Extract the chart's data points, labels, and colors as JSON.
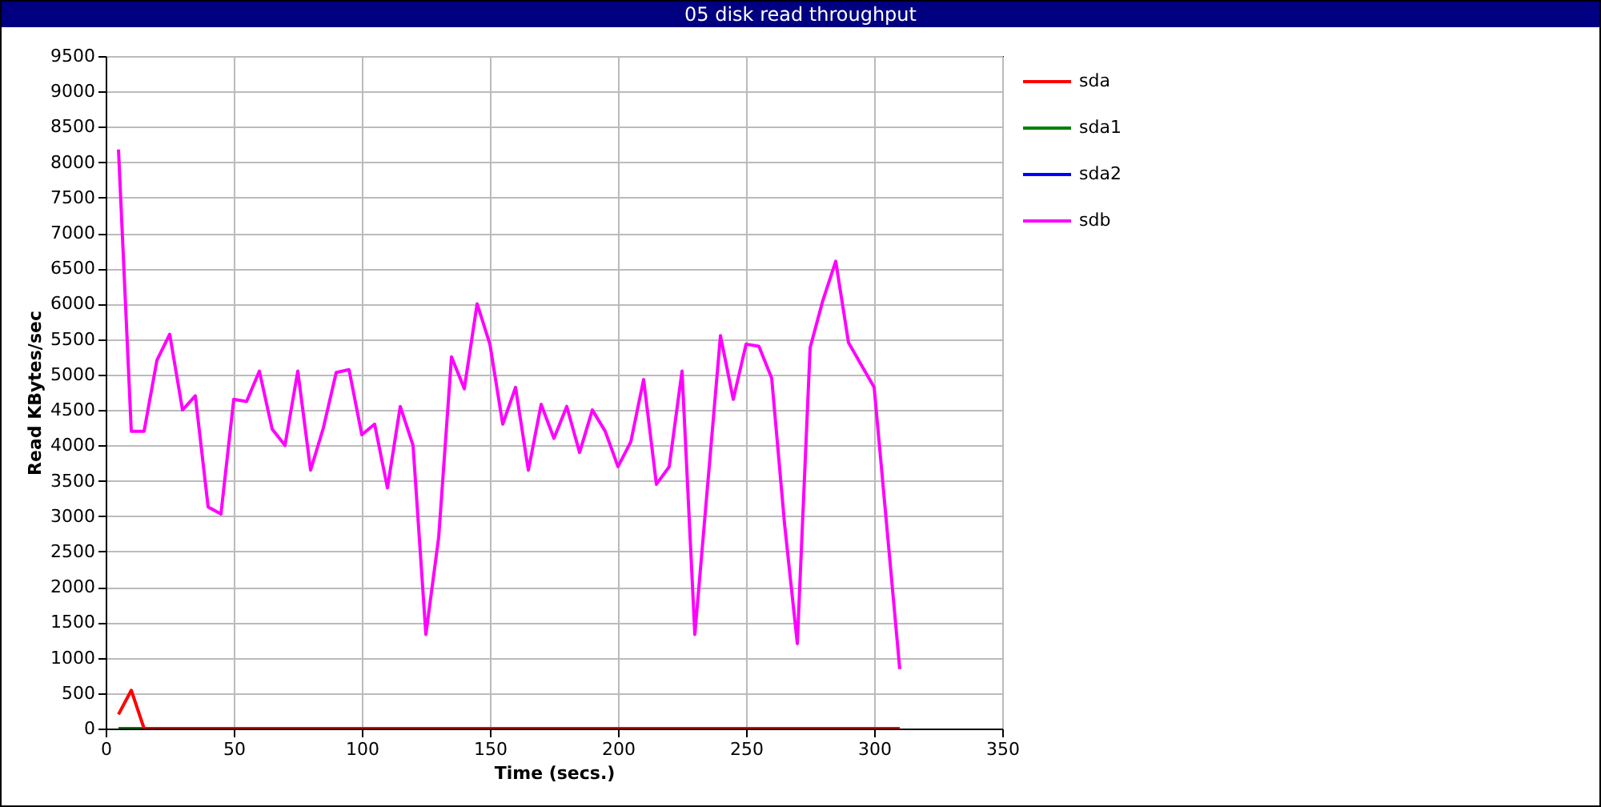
{
  "chart_data": {
    "type": "line",
    "title": "05 disk read throughput",
    "xlabel": "Time (secs.)",
    "ylabel": "Read KBytes/sec",
    "xlim": [
      0,
      350
    ],
    "xticks": [
      0,
      50,
      100,
      150,
      200,
      250,
      300,
      350
    ],
    "ylim": [
      0,
      9500
    ],
    "yticks": [
      0,
      500,
      1000,
      1500,
      2000,
      2500,
      3000,
      3500,
      4000,
      4500,
      5000,
      5500,
      6000,
      6500,
      7000,
      7500,
      8000,
      8500,
      9000,
      9500
    ],
    "grid": true,
    "legend": "top right",
    "line_style": "solid",
    "series": [
      {
        "name": "sda",
        "color": "#ff0000",
        "x": [
          5,
          10,
          15,
          310
        ],
        "values": [
          200,
          540,
          0,
          0
        ]
      },
      {
        "name": "sda1",
        "color": "#008000",
        "x": [
          5,
          10,
          15
        ],
        "values": [
          0,
          0,
          0
        ]
      },
      {
        "name": "sda2",
        "color": "#0000ff"
      },
      {
        "name": "sdb",
        "color": "#ff00ff",
        "x": [
          5,
          10,
          15,
          20,
          25,
          30,
          35,
          40,
          45,
          50,
          55,
          60,
          65,
          70,
          75,
          80,
          85,
          90,
          95,
          100,
          105,
          110,
          115,
          120,
          125,
          130,
          135,
          140,
          145,
          150,
          155,
          160,
          165,
          170,
          175,
          180,
          185,
          190,
          195,
          200,
          205,
          210,
          215,
          220,
          225,
          230,
          240,
          245,
          250,
          255,
          260,
          265,
          270,
          275,
          280,
          285,
          290,
          300,
          310
        ],
        "values": [
          8180,
          4200,
          4200,
          5200,
          5570,
          4500,
          4700,
          3130,
          3030,
          4650,
          4620,
          5050,
          4230,
          4000,
          5050,
          3650,
          4250,
          5030,
          5070,
          4150,
          4300,
          3400,
          4550,
          4000,
          1330,
          2700,
          5250,
          4800,
          6000,
          5430,
          4300,
          4820,
          3650,
          4580,
          4100,
          4550,
          3900,
          4500,
          4200,
          3700,
          4050,
          4930,
          3450,
          3700,
          5050,
          1330,
          5550,
          4650,
          5430,
          5400,
          4950,
          2900,
          1200,
          5380,
          6050,
          6600,
          5450,
          4820,
          840
        ]
      }
    ]
  }
}
